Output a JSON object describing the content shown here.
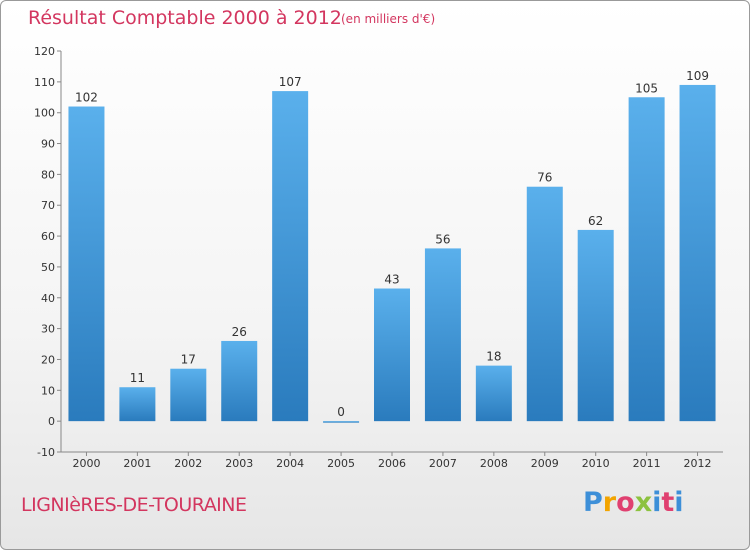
{
  "header": {
    "title": "Résultat Comptable 2000 à 2012",
    "units": "(en milliers d'€)"
  },
  "footer": {
    "town": "LIGNIèRES-DE-TOURAINE",
    "logo_text": "Proxiti"
  },
  "colors": {
    "bar_light": "#5ab0ec",
    "bar_dark": "#2a7bbd",
    "title": "#d3365f"
  },
  "chart_data": {
    "type": "bar",
    "title": "Résultat Comptable 2000 à 2012",
    "xlabel": "",
    "ylabel": "",
    "categories": [
      "2000",
      "2001",
      "2002",
      "2003",
      "2004",
      "2005",
      "2006",
      "2007",
      "2008",
      "2009",
      "2010",
      "2011",
      "2012"
    ],
    "values": [
      102,
      11,
      17,
      26,
      107,
      0,
      43,
      56,
      18,
      76,
      62,
      105,
      109
    ],
    "ylim": [
      -10,
      120
    ],
    "yticks": [
      -10,
      0,
      10,
      20,
      30,
      40,
      50,
      60,
      70,
      80,
      90,
      100,
      110,
      120
    ],
    "grid": false,
    "legend": "none"
  }
}
